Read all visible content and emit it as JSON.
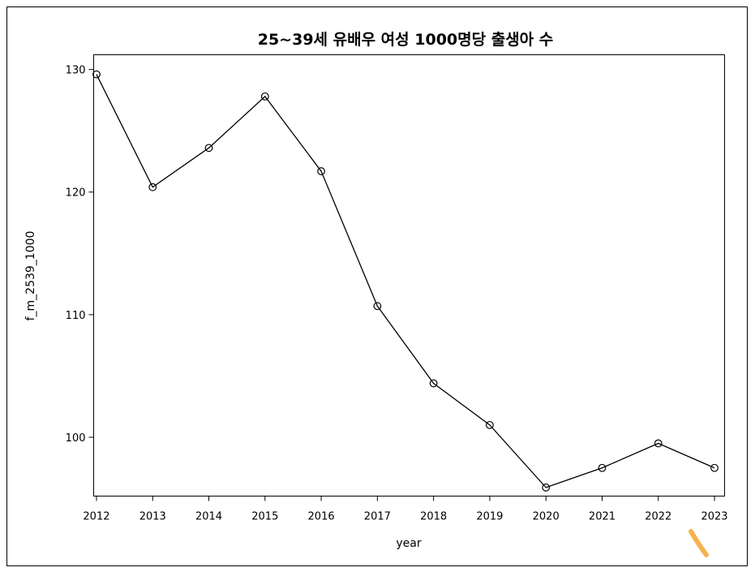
{
  "chart_data": {
    "type": "line",
    "title": "25~39세 유배우 여성 1000명당 출생아 수",
    "xlabel": "year",
    "ylabel": "f_m_2539_1000",
    "x": [
      2012,
      2013,
      2014,
      2015,
      2016,
      2017,
      2018,
      2019,
      2020,
      2021,
      2022,
      2023
    ],
    "series": [
      {
        "values": [
          129.6,
          120.4,
          123.6,
          127.8,
          121.7,
          110.7,
          104.4,
          101.0,
          95.9,
          97.5,
          99.5,
          97.5
        ]
      }
    ],
    "xlim": [
      2011.95,
      2023.18
    ],
    "ylim": [
      95.2,
      131.2
    ],
    "xticks": [
      "2012",
      "2013",
      "2014",
      "2015",
      "2016",
      "2017",
      "2018",
      "2019",
      "2020",
      "2021",
      "2022",
      "2023"
    ],
    "yticks": [
      "100",
      "110",
      "120",
      "130"
    ],
    "marker": "open-circle",
    "line_color": "#000000",
    "grid": false,
    "legend": "none"
  }
}
